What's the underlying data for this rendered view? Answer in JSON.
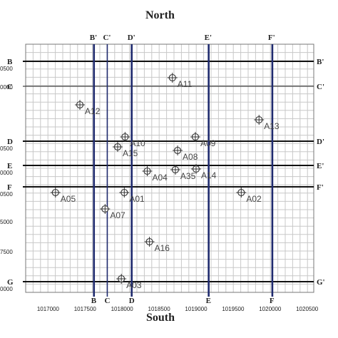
{
  "header": {
    "title": "North"
  },
  "footer": {
    "title": "South"
  },
  "x_ticks": [
    "1017000",
    "1017500",
    "1018000",
    "1018500",
    "1019000",
    "1019500",
    "1020000",
    "1020500"
  ],
  "y_tick_fragments": [
    {
      "row": "B",
      "text": "0500"
    },
    {
      "row": "C",
      "text": "0000"
    },
    {
      "row": "D",
      "text": "0500"
    },
    {
      "row": "E",
      "text": "0000"
    },
    {
      "row": "F",
      "text": "0500"
    },
    {
      "row": "mid1",
      "text": "5000"
    },
    {
      "row": "mid2",
      "text": "7500"
    },
    {
      "row": "G",
      "text": "0000"
    }
  ],
  "vertical_sections": [
    {
      "top": "B'",
      "bottom": "B",
      "x_data": 1017620,
      "bold": true
    },
    {
      "top": "C'",
      "bottom": "C",
      "x_data": 1017800,
      "bold": false
    },
    {
      "top": "D'",
      "bottom": "D",
      "x_data": 1018130,
      "bold": true
    },
    {
      "top": "E'",
      "bottom": "E",
      "x_data": 1019170,
      "bold": true
    },
    {
      "top": "F'",
      "bottom": "F",
      "x_data": 1020030,
      "bold": true
    }
  ],
  "horizontal_sections": [
    {
      "left": "B",
      "right": "B'",
      "row": "B",
      "bold": true
    },
    {
      "left": "C",
      "right": "C'",
      "row": "C",
      "bold": false
    },
    {
      "left": "D",
      "right": "D'",
      "row": "D",
      "bold": true
    },
    {
      "left": "E",
      "right": "E'",
      "row": "E",
      "bold": true
    },
    {
      "left": "F",
      "right": "F'",
      "row": "F",
      "bold": true
    },
    {
      "left": "G",
      "right": "G'",
      "row": "G",
      "bold": true
    }
  ],
  "wells": [
    {
      "id": "A11",
      "label": "A11",
      "x_data": 1018680,
      "row": "w_a11"
    },
    {
      "id": "A12",
      "label": "A12",
      "x_data": 1017430,
      "row": "w_a12"
    },
    {
      "id": "A13",
      "label": "A13",
      "x_data": 1019850,
      "row": "w_a13"
    },
    {
      "id": "A09",
      "label": "A09",
      "x_data": 1018990,
      "row": "w_a09"
    },
    {
      "id": "A10",
      "label": "A10",
      "x_data": 1018040,
      "row": "w_a10"
    },
    {
      "id": "A15",
      "label": "A15",
      "x_data": 1017940,
      "row": "w_a15"
    },
    {
      "id": "A08",
      "label": "A08",
      "x_data": 1018750,
      "row": "w_a08"
    },
    {
      "id": "A14",
      "label": "A14",
      "x_data": 1019000,
      "row": "w_a14"
    },
    {
      "id": "A35",
      "label": "A35",
      "x_data": 1018720,
      "row": "w_a35"
    },
    {
      "id": "A04",
      "label": "A04",
      "x_data": 1018340,
      "row": "w_a04"
    },
    {
      "id": "A05",
      "label": "A05",
      "x_data": 1017100,
      "row": "w_a05"
    },
    {
      "id": "A01",
      "label": "A01",
      "x_data": 1018030,
      "row": "w_a01"
    },
    {
      "id": "A02",
      "label": "A02",
      "x_data": 1019610,
      "row": "w_a02"
    },
    {
      "id": "A07",
      "label": "A07",
      "x_data": 1017770,
      "row": "w_a07"
    },
    {
      "id": "A16",
      "label": "A16",
      "x_data": 1018370,
      "row": "w_a16"
    },
    {
      "id": "A03",
      "label": "A03",
      "x_data": 1017990,
      "row": "w_a03"
    }
  ],
  "colors": {
    "section_line": "#1f2a6e",
    "grid": "#c8c8c8",
    "frame": "#777777",
    "text": "#222222"
  }
}
